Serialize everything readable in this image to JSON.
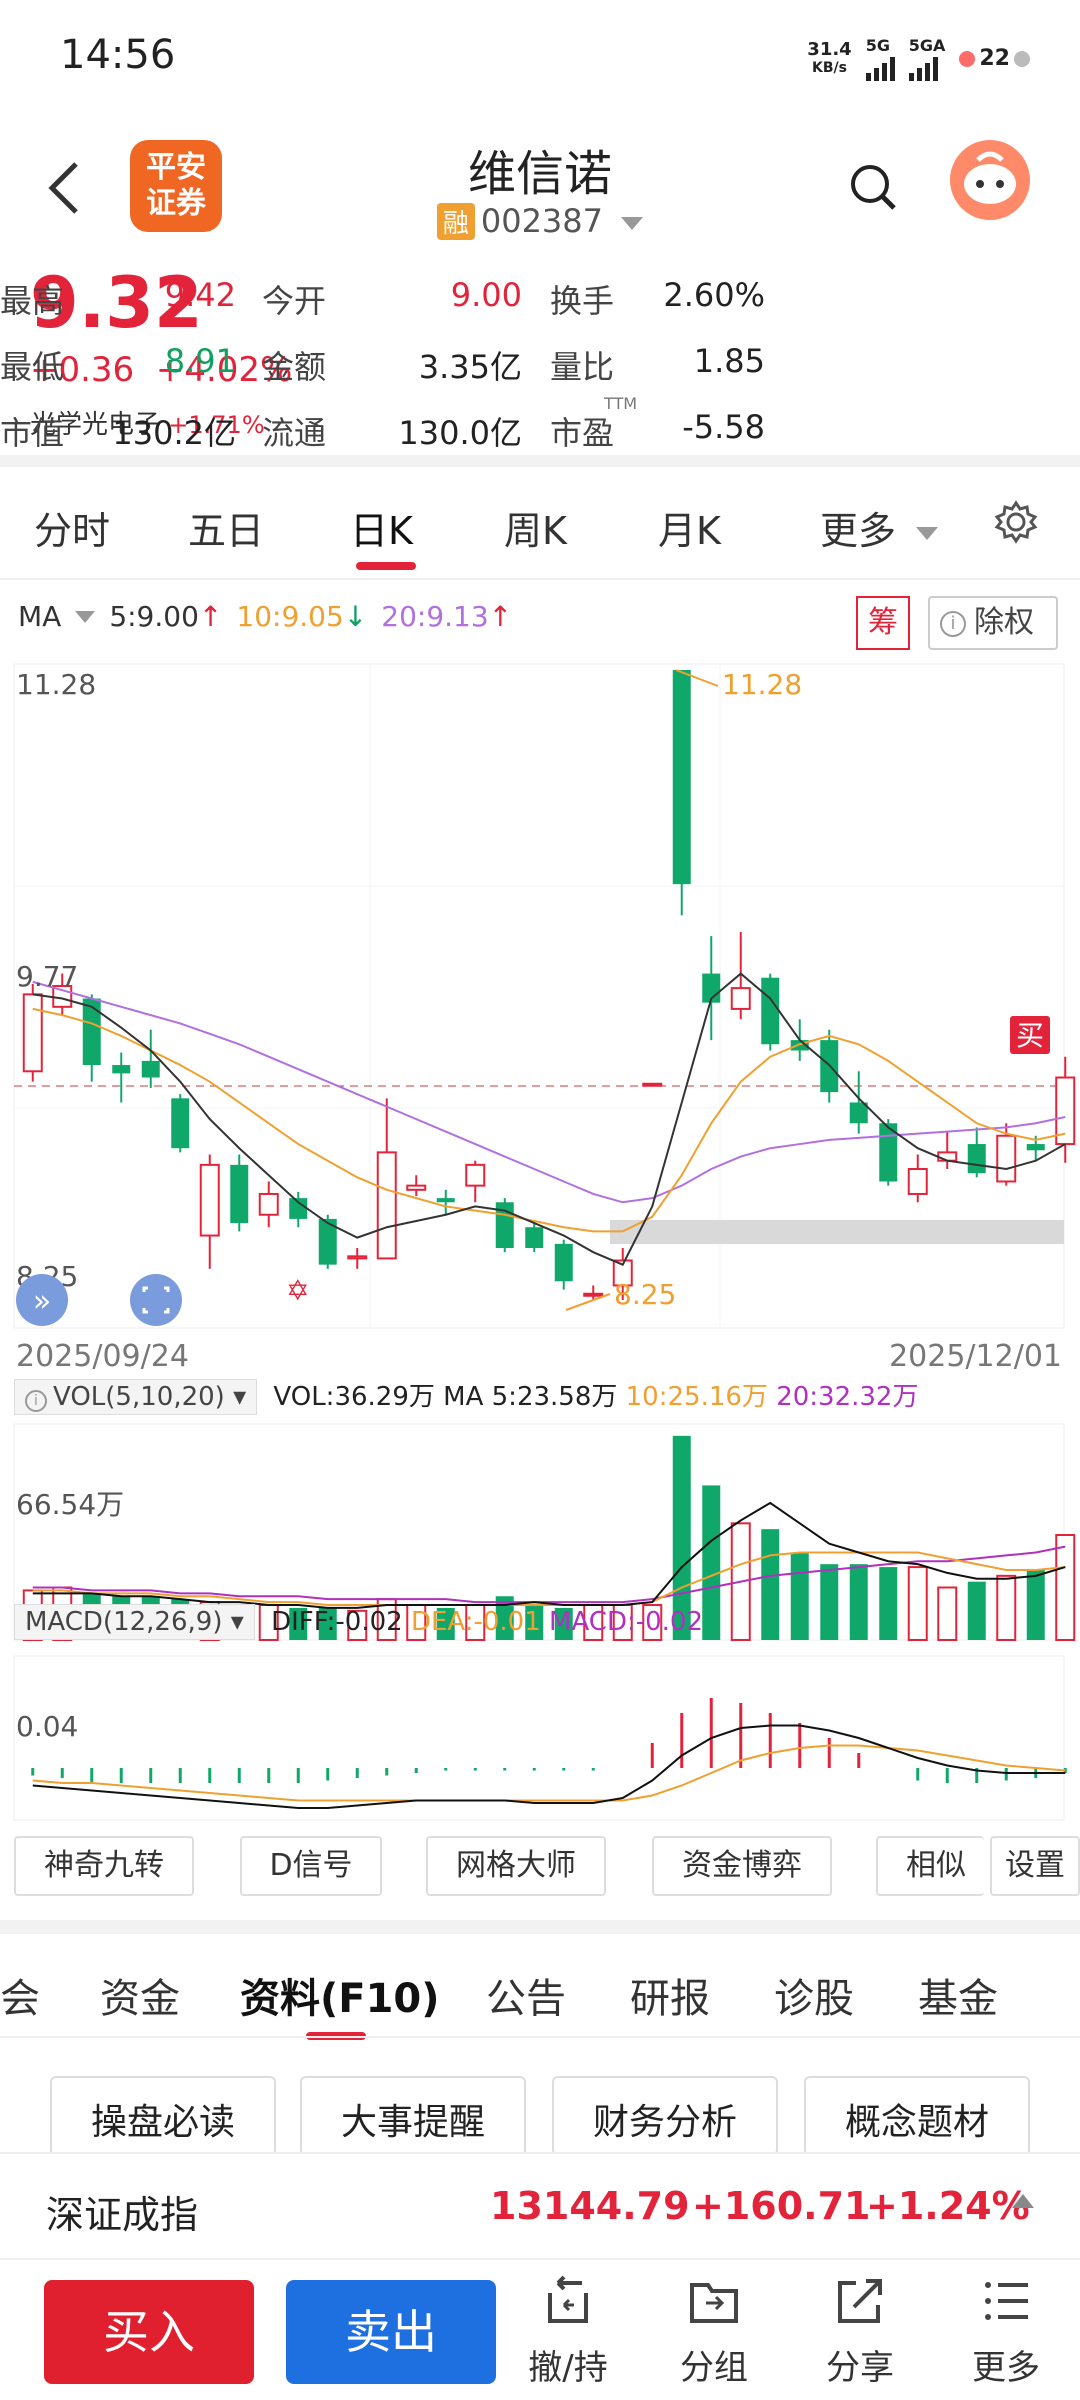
{
  "status": {
    "time": "14:56",
    "net_speed": "31.4",
    "net_unit": "KB/s",
    "sig1": "5G",
    "sig2": "5GA",
    "battery": "22"
  },
  "header": {
    "logo_line1": "平安",
    "logo_line2": "证券",
    "name": "维信诺",
    "tag": "融",
    "code": "002387"
  },
  "quote": {
    "price": "9.32",
    "change": "+0.36",
    "change_pct": "+4.02%",
    "sector_name": "光学光电子",
    "sector_pct": "+1.71%",
    "high_label": "最高",
    "high": "9.42",
    "open_label": "今开",
    "open": "9.00",
    "turnover_label": "换手",
    "turnover": "2.60%",
    "low_label": "最低",
    "low": "8.91",
    "amount_label": "金额",
    "amount": "3.35亿",
    "vol_ratio_label": "量比",
    "vol_ratio": "1.85",
    "mcap_label": "市值",
    "mcap": "130.2亿",
    "float_label": "流通",
    "float": "130.0亿",
    "pe_label": "市盈",
    "pe_sup": "TTM",
    "pe": "-5.58"
  },
  "period_tabs": [
    "分时",
    "五日",
    "日K",
    "周K",
    "月K",
    "更多"
  ],
  "ma_legend": {
    "label": "MA",
    "ma5": "5:9.00",
    "ma10": "10:9.05",
    "ma20": "20:9.13",
    "ma5_color": "#333333",
    "ma10_color": "#f0a030",
    "ma20_color": "#b070e0"
  },
  "chart_badges": {
    "chou": "筹",
    "chuquan": "除权",
    "buy_mark": "买"
  },
  "chart_labels": {
    "ymax": "11.28",
    "ymid": "9.77",
    "ymin": "8.25",
    "max_annot": "11.28",
    "min_annot": "8.25",
    "start_date": "2025/09/24",
    "end_date": "2025/12/01"
  },
  "vol_legend": {
    "name": "VOL(5,10,20)",
    "vol": "VOL:36.29万",
    "ma5": "MA 5:23.58万",
    "ma10": "10:25.16万",
    "ma20": "20:32.32万",
    "ylabel": "66.54万"
  },
  "macd_legend": {
    "name": "MACD(12,26,9)",
    "diff": "DIFF:-0.02",
    "dea": "DEA:-0.01",
    "macd": "MACD:-0.02",
    "ylabel": "0.04"
  },
  "tools": [
    "神奇九转",
    "D信号",
    "网格大师",
    "资金博弈",
    "相似K",
    "设置"
  ],
  "info_tabs": [
    "会",
    "资金",
    "资料(F10)",
    "公告",
    "研报",
    "诊股",
    "基金"
  ],
  "sub_buttons": [
    "操盘必读",
    "大事提醒",
    "财务分析",
    "概念题材"
  ],
  "index_bar": {
    "name": "深证成指",
    "value": "13144.79",
    "change": "+160.71",
    "pct": "+1.24%"
  },
  "bottom": {
    "buy": "买入",
    "sell": "卖出",
    "actions": [
      "撤/持",
      "分组",
      "分享",
      "更多"
    ]
  },
  "chart_data": {
    "type": "candlestick",
    "title": "",
    "x_range": [
      "2025/09/24",
      "2025/12/01"
    ],
    "ylim": [
      8.25,
      11.28
    ],
    "candles": [
      {
        "o": 9.35,
        "c": 9.72,
        "h": 9.77,
        "l": 9.3
      },
      {
        "o": 9.66,
        "c": 9.76,
        "h": 9.82,
        "l": 9.62
      },
      {
        "o": 9.7,
        "c": 9.38,
        "h": 9.72,
        "l": 9.3
      },
      {
        "o": 9.38,
        "c": 9.34,
        "h": 9.44,
        "l": 9.2
      },
      {
        "o": 9.4,
        "c": 9.32,
        "h": 9.55,
        "l": 9.27
      },
      {
        "o": 9.22,
        "c": 8.98,
        "h": 9.24,
        "l": 8.96
      },
      {
        "o": 8.56,
        "c": 8.9,
        "h": 8.95,
        "l": 8.4
      },
      {
        "o": 8.9,
        "c": 8.62,
        "h": 8.95,
        "l": 8.58
      },
      {
        "o": 8.66,
        "c": 8.76,
        "h": 8.82,
        "l": 8.6
      },
      {
        "o": 8.74,
        "c": 8.64,
        "h": 8.77,
        "l": 8.6
      },
      {
        "o": 8.64,
        "c": 8.42,
        "h": 8.66,
        "l": 8.4
      },
      {
        "o": 8.45,
        "c": 8.46,
        "h": 8.5,
        "l": 8.4
      },
      {
        "o": 8.45,
        "c": 8.96,
        "h": 9.22,
        "l": 8.45
      },
      {
        "o": 8.78,
        "c": 8.8,
        "h": 8.85,
        "l": 8.75
      },
      {
        "o": 8.74,
        "c": 8.72,
        "h": 8.78,
        "l": 8.66
      },
      {
        "o": 8.8,
        "c": 8.9,
        "h": 8.92,
        "l": 8.72
      },
      {
        "o": 8.72,
        "c": 8.5,
        "h": 8.74,
        "l": 8.48
      },
      {
        "o": 8.6,
        "c": 8.5,
        "h": 8.62,
        "l": 8.48
      },
      {
        "o": 8.52,
        "c": 8.34,
        "h": 8.54,
        "l": 8.3
      },
      {
        "o": 8.28,
        "c": 8.28,
        "h": 8.32,
        "l": 8.25
      },
      {
        "o": 8.32,
        "c": 8.44,
        "h": 8.5,
        "l": 8.25
      },
      {
        "o": 9.29,
        "c": 9.29,
        "h": 9.29,
        "l": 9.29
      },
      {
        "o": 11.28,
        "c": 10.25,
        "h": 11.28,
        "l": 10.1
      },
      {
        "o": 9.82,
        "c": 9.68,
        "h": 10.0,
        "l": 9.5
      },
      {
        "o": 9.65,
        "c": 9.75,
        "h": 10.02,
        "l": 9.6
      },
      {
        "o": 9.8,
        "c": 9.48,
        "h": 9.82,
        "l": 9.45
      },
      {
        "o": 9.5,
        "c": 9.45,
        "h": 9.6,
        "l": 9.4
      },
      {
        "o": 9.5,
        "c": 9.25,
        "h": 9.55,
        "l": 9.2
      },
      {
        "o": 9.2,
        "c": 9.1,
        "h": 9.35,
        "l": 9.05
      },
      {
        "o": 9.1,
        "c": 8.82,
        "h": 9.12,
        "l": 8.8
      },
      {
        "o": 8.76,
        "c": 8.88,
        "h": 8.95,
        "l": 8.72
      },
      {
        "o": 8.92,
        "c": 8.96,
        "h": 9.06,
        "l": 8.88
      },
      {
        "o": 9.0,
        "c": 8.86,
        "h": 9.08,
        "l": 8.84
      },
      {
        "o": 8.82,
        "c": 9.04,
        "h": 9.1,
        "l": 8.8
      },
      {
        "o": 9.0,
        "c": 8.97,
        "h": 9.04,
        "l": 8.92
      },
      {
        "o": 9.0,
        "c": 9.32,
        "h": 9.42,
        "l": 8.91
      }
    ],
    "ma5": [
      9.72,
      9.7,
      9.66,
      9.56,
      9.45,
      9.3,
      9.12,
      8.98,
      8.85,
      8.72,
      8.62,
      8.55,
      8.6,
      8.63,
      8.66,
      8.7,
      8.68,
      8.62,
      8.56,
      8.48,
      8.42,
      8.7,
      9.2,
      9.7,
      9.82,
      9.7,
      9.5,
      9.38,
      9.22,
      9.08,
      8.98,
      8.92,
      8.9,
      8.88,
      8.92,
      9.0
    ],
    "ma10": [
      9.65,
      9.62,
      9.58,
      9.52,
      9.45,
      9.38,
      9.3,
      9.2,
      9.1,
      9.0,
      8.92,
      8.84,
      8.78,
      8.74,
      8.7,
      8.68,
      8.66,
      8.63,
      8.6,
      8.58,
      8.58,
      8.65,
      8.85,
      9.1,
      9.3,
      9.42,
      9.48,
      9.52,
      9.48,
      9.4,
      9.3,
      9.2,
      9.1,
      9.05,
      9.02,
      9.05
    ],
    "ma20": [
      9.78,
      9.74,
      9.7,
      9.66,
      9.62,
      9.58,
      9.53,
      9.48,
      9.42,
      9.36,
      9.3,
      9.24,
      9.18,
      9.12,
      9.06,
      9.0,
      8.94,
      8.88,
      8.82,
      8.76,
      8.72,
      8.74,
      8.8,
      8.88,
      8.94,
      8.98,
      9.0,
      9.02,
      9.03,
      9.04,
      9.05,
      9.06,
      9.07,
      9.08,
      9.1,
      9.13
    ],
    "volume": [
      17,
      18,
      16,
      15,
      15,
      14,
      13,
      12,
      12,
      11,
      11,
      10,
      14,
      12,
      11,
      12,
      15,
      12,
      11,
      12,
      12,
      12,
      70,
      53,
      40,
      38,
      30,
      26,
      26,
      25,
      25,
      18,
      20,
      22,
      24,
      36
    ],
    "vol_ma5": [
      16,
      16,
      16,
      15,
      15,
      14,
      13,
      13,
      12,
      12,
      11,
      11,
      12,
      12,
      12,
      12,
      12,
      13,
      12,
      12,
      12,
      13,
      25,
      34,
      41,
      47,
      40,
      33,
      30,
      27,
      26,
      23,
      21,
      21,
      22,
      25
    ],
    "vol_ma10": [
      17,
      17,
      16,
      16,
      16,
      15,
      15,
      14,
      13,
      13,
      12,
      12,
      12,
      12,
      12,
      12,
      12,
      12,
      12,
      12,
      12,
      13,
      18,
      22,
      26,
      29,
      30,
      30,
      30,
      30,
      30,
      28,
      26,
      24,
      24,
      25
    ],
    "vol_ma20": [
      18,
      18,
      17,
      17,
      17,
      16,
      16,
      15,
      15,
      15,
      14,
      14,
      14,
      14,
      14,
      13,
      13,
      13,
      13,
      13,
      13,
      14,
      16,
      18,
      20,
      22,
      23,
      24,
      25,
      26,
      27,
      27,
      28,
      29,
      30,
      32
    ],
    "diff": [
      -0.07,
      -0.08,
      -0.09,
      -0.1,
      -0.11,
      -0.12,
      -0.13,
      -0.14,
      -0.15,
      -0.16,
      -0.16,
      -0.15,
      -0.14,
      -0.13,
      -0.13,
      -0.13,
      -0.13,
      -0.14,
      -0.14,
      -0.14,
      -0.12,
      -0.05,
      0.05,
      0.12,
      0.16,
      0.17,
      0.17,
      0.15,
      0.12,
      0.08,
      0.04,
      0.01,
      -0.01,
      -0.02,
      -0.02,
      -0.02
    ],
    "dea": [
      -0.05,
      -0.06,
      -0.06,
      -0.07,
      -0.08,
      -0.09,
      -0.1,
      -0.11,
      -0.12,
      -0.13,
      -0.13,
      -0.13,
      -0.13,
      -0.13,
      -0.13,
      -0.13,
      -0.13,
      -0.13,
      -0.13,
      -0.13,
      -0.13,
      -0.11,
      -0.07,
      -0.02,
      0.03,
      0.06,
      0.08,
      0.09,
      0.09,
      0.08,
      0.07,
      0.05,
      0.03,
      0.01,
      0.0,
      -0.01
    ],
    "macd": [
      -0.03,
      -0.04,
      -0.06,
      -0.06,
      -0.06,
      -0.06,
      -0.06,
      -0.06,
      -0.06,
      -0.06,
      -0.05,
      -0.04,
      -0.03,
      -0.02,
      -0.01,
      -0.01,
      -0.01,
      -0.01,
      -0.01,
      -0.01,
      0.0,
      0.1,
      0.22,
      0.28,
      0.26,
      0.22,
      0.18,
      0.12,
      0.06,
      0.0,
      -0.05,
      -0.06,
      -0.06,
      -0.05,
      -0.04,
      -0.02
    ]
  }
}
